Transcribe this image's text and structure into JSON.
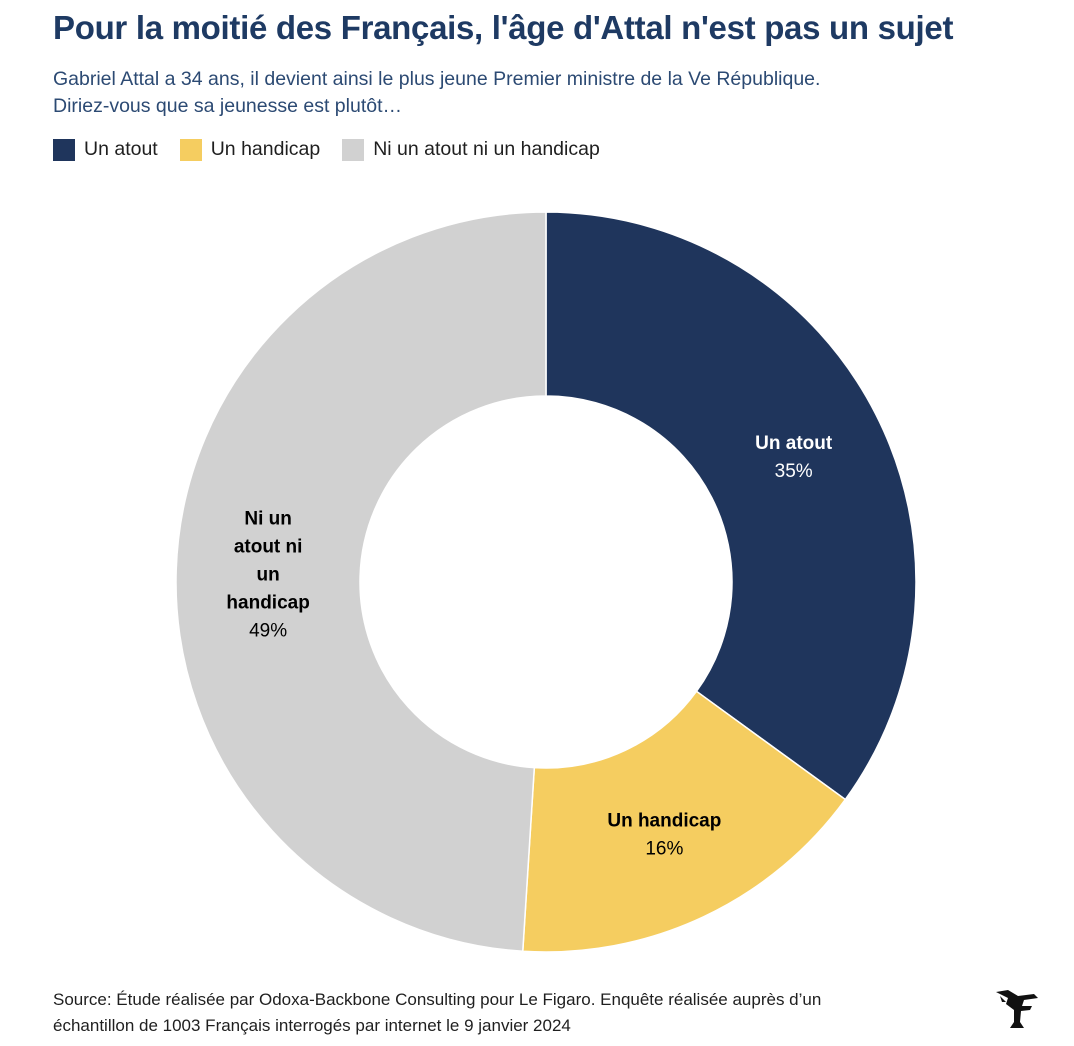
{
  "header": {
    "title": "Pour la moitié des Français, l'âge d'Attal n'est pas un sujet",
    "subtitle_line1": "Gabriel Attal a 34 ans, il devient ainsi le plus jeune Premier ministre de la Ve République.",
    "subtitle_line2": "Diriez-vous que sa jeunesse est plutôt…"
  },
  "legend": [
    {
      "label": "Un atout",
      "color": "#1f355c"
    },
    {
      "label": "Un handicap",
      "color": "#f5cd60"
    },
    {
      "label": "Ni un atout ni un handicap",
      "color": "#d1d1d1"
    }
  ],
  "chart_data": {
    "type": "pie",
    "variant": "donut",
    "title": "Pour la moitié des Français, l'âge d'Attal n'est pas un sujet",
    "legend_position": "top-left",
    "slices": [
      {
        "label": "Un atout",
        "label_lines": [
          "Un atout"
        ],
        "value": 35,
        "display": "35%",
        "color": "#1f355c",
        "text_color": "#ffffff"
      },
      {
        "label": "Un handicap",
        "label_lines": [
          "Un handicap"
        ],
        "value": 16,
        "display": "16%",
        "color": "#f5cd60",
        "text_color": "#000000"
      },
      {
        "label": "Ni un atout ni un handicap",
        "label_lines": [
          "Ni un",
          "atout ni",
          "un",
          "handicap"
        ],
        "value": 49,
        "display": "49%",
        "color": "#d1d1d1",
        "text_color": "#000000"
      }
    ]
  },
  "footer": {
    "source_line1": "Source: Étude réalisée par Odoxa-Backbone Consulting pour Le Figaro. Enquête réalisée auprès d’un",
    "source_line2": "échantillon de 1003 Français interrogés par internet le 9 janvier 2024"
  },
  "logo": {
    "icon": "le-figaro-logo-icon"
  }
}
